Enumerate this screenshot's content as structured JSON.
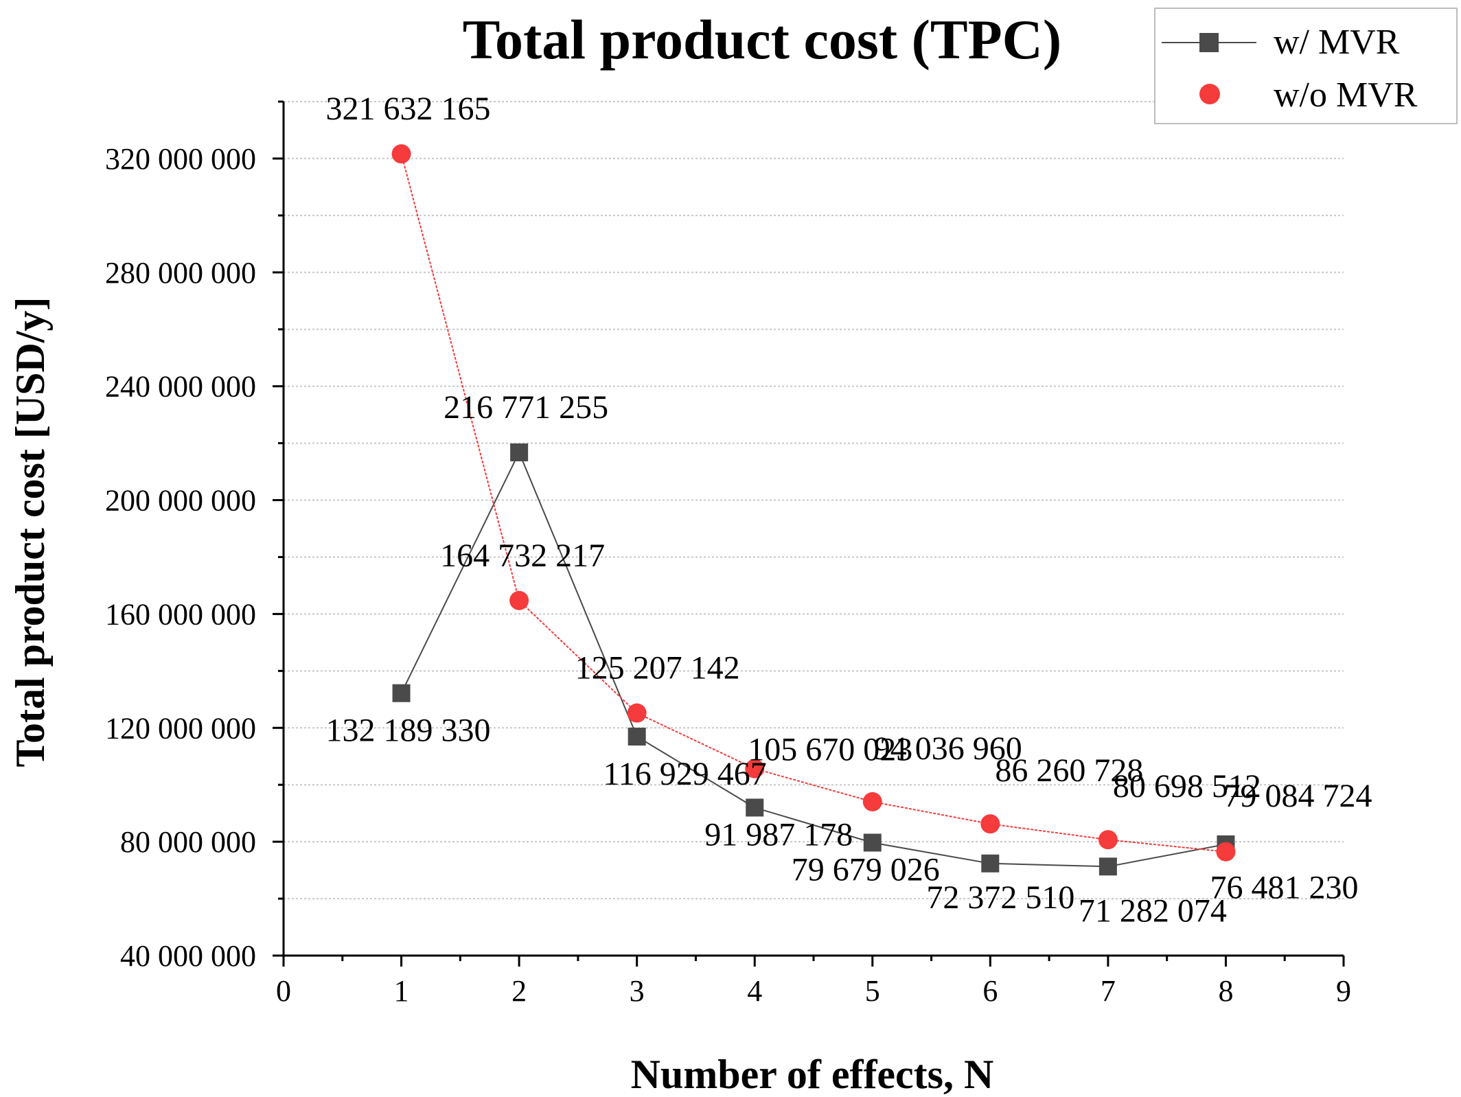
{
  "chart_data": {
    "type": "line",
    "title": "Total product cost (TPC)",
    "xlabel": "Number of effects, N",
    "ylabel": "Total product cost [USD/y]",
    "xlim": [
      0,
      9
    ],
    "ylim": [
      40000000,
      340000000
    ],
    "x_ticks": [
      "0",
      "1",
      "2",
      "3",
      "4",
      "5",
      "6",
      "7",
      "8",
      "9"
    ],
    "y_ticks": [
      {
        "value": 40000000,
        "label": "40 000 000"
      },
      {
        "value": 80000000,
        "label": "80 000 000"
      },
      {
        "value": 120000000,
        "label": "120 000 000"
      },
      {
        "value": 160000000,
        "label": "160 000 000"
      },
      {
        "value": 200000000,
        "label": "200 000 000"
      },
      {
        "value": 240000000,
        "label": "240 000 000"
      },
      {
        "value": 280000000,
        "label": "280 000 000"
      },
      {
        "value": 320000000,
        "label": "320 000 000"
      }
    ],
    "grid": true,
    "legend_position": "top-right",
    "series": [
      {
        "name": "w/ MVR",
        "color": "#4a4a4a",
        "marker": "square",
        "x": [
          1,
          2,
          3,
          4,
          5,
          6,
          7,
          8
        ],
        "y": [
          132189330,
          216771255,
          116929467,
          91987178,
          79679026,
          72372510,
          71282074,
          79084724
        ],
        "labels": [
          "132 189 330",
          "216 771 255",
          "116 929 467",
          "91 987 178",
          "79 679 026",
          "72 372 510",
          "71 282 074",
          "79 084 724"
        ]
      },
      {
        "name": "w/o MVR",
        "color": "#f53b3b",
        "marker": "circle",
        "x": [
          1,
          2,
          3,
          4,
          5,
          6,
          7,
          8
        ],
        "y": [
          321632165,
          164732217,
          125207142,
          105670023,
          94036960,
          86260728,
          80698512,
          76481230
        ],
        "labels": [
          "321 632 165",
          "164 732 217",
          "125 207 142",
          "105 670 023",
          "94 036 960",
          "86 260 728",
          "80 698 512",
          "76 481 230"
        ]
      }
    ]
  }
}
